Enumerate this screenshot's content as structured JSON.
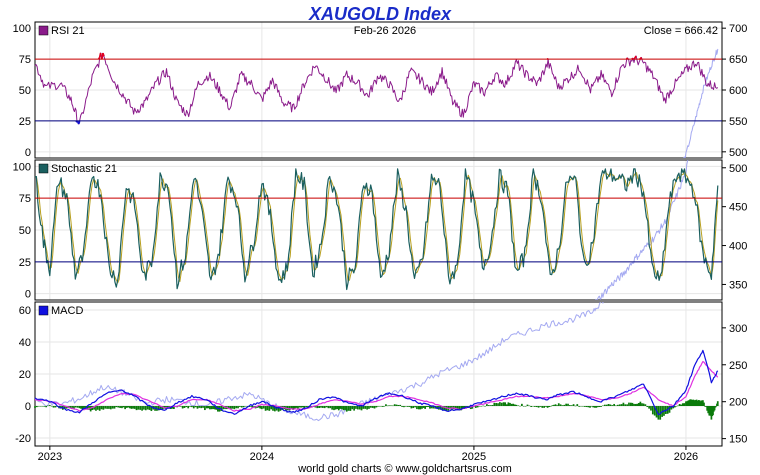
{
  "chart_data": {
    "type": "line",
    "title": "XAUGOLD Index",
    "date_label": "Feb-26  2026",
    "close_label": "Close = 666.42",
    "footer": "world gold charts © www.goldchartsrus.com",
    "x_labels": [
      "2023",
      "2024",
      "2025",
      "2026"
    ],
    "x_range": [
      2022.93,
      2026.17
    ],
    "colors": {
      "rsi": "#8a1a8a",
      "rsi_overbought": "#e00020",
      "rsi_oversold": "#1010d0",
      "stoch_k": "#1a5f5f",
      "stoch_d": "#b8a020",
      "macd": "#1010e0",
      "signal": "#e030e0",
      "histogram": "#0a7a0a",
      "price": "#9aa0f0",
      "upper_line": "#cc0000",
      "lower_line": "#000080",
      "grid": "#e6e6e6"
    },
    "price_series": {
      "name": "XAUGOLD Index",
      "x": [
        2022.93,
        2023.05,
        2023.15,
        2023.25,
        2023.35,
        2023.45,
        2023.55,
        2023.65,
        2023.75,
        2023.85,
        2023.95,
        2024.05,
        2024.15,
        2024.25,
        2024.35,
        2024.45,
        2024.55,
        2024.65,
        2024.75,
        2024.85,
        2024.95,
        2025.05,
        2025.15,
        2025.25,
        2025.35,
        2025.45,
        2025.55,
        2025.6,
        2025.65,
        2025.7,
        2025.75,
        2025.8,
        2025.85,
        2025.9,
        2025.95,
        2026.0,
        2026.05,
        2026.08,
        2026.12,
        2026.15
      ],
      "values": [
        200,
        196,
        205,
        220,
        212,
        198,
        203,
        200,
        195,
        205,
        210,
        195,
        185,
        178,
        182,
        195,
        205,
        215,
        225,
        240,
        250,
        265,
        285,
        295,
        305,
        310,
        320,
        335,
        350,
        362,
        380,
        395,
        410,
        430,
        460,
        495,
        560,
        600,
        640,
        666.42
      ]
    },
    "rsi": {
      "label": "RSI 21",
      "yticks": [
        100,
        75,
        50,
        25,
        0
      ],
      "ylim": [
        -5,
        105
      ],
      "overbought": 75,
      "oversold": 25,
      "x": [
        2022.93,
        2022.98,
        2023.05,
        2023.1,
        2023.14,
        2023.2,
        2023.25,
        2023.3,
        2023.35,
        2023.4,
        2023.45,
        2023.5,
        2023.55,
        2023.6,
        2023.65,
        2023.7,
        2023.75,
        2023.8,
        2023.85,
        2023.9,
        2023.95,
        2024.0,
        2024.05,
        2024.1,
        2024.15,
        2024.2,
        2024.25,
        2024.3,
        2024.35,
        2024.4,
        2024.45,
        2024.5,
        2024.55,
        2024.6,
        2024.65,
        2024.7,
        2024.75,
        2024.8,
        2024.85,
        2024.9,
        2024.95,
        2025.0,
        2025.05,
        2025.1,
        2025.15,
        2025.2,
        2025.25,
        2025.3,
        2025.35,
        2025.4,
        2025.45,
        2025.5,
        2025.55,
        2025.6,
        2025.65,
        2025.7,
        2025.75,
        2025.8,
        2025.85,
        2025.9,
        2025.95,
        2026.0,
        2026.05,
        2026.1,
        2026.15
      ],
      "values": [
        72,
        52,
        55,
        42,
        22,
        60,
        80,
        58,
        45,
        32,
        40,
        55,
        65,
        40,
        30,
        55,
        62,
        50,
        35,
        62,
        55,
        42,
        58,
        40,
        35,
        55,
        70,
        60,
        48,
        62,
        56,
        45,
        62,
        55,
        40,
        65,
        58,
        48,
        65,
        40,
        30,
        55,
        48,
        62,
        55,
        72,
        62,
        55,
        72,
        52,
        60,
        68,
        50,
        62,
        48,
        70,
        75,
        72,
        60,
        42,
        55,
        66,
        73,
        55,
        52
      ]
    },
    "stochastic": {
      "label": "Stochastic 21",
      "yticks": [
        100,
        75,
        50,
        25,
        0
      ],
      "ylim": [
        -5,
        105
      ],
      "overbought": 75,
      "oversold": 25,
      "x": [
        2022.93,
        2022.97,
        2023.0,
        2023.04,
        2023.08,
        2023.12,
        2023.16,
        2023.2,
        2023.24,
        2023.28,
        2023.32,
        2023.36,
        2023.4,
        2023.44,
        2023.48,
        2023.52,
        2023.56,
        2023.6,
        2023.64,
        2023.68,
        2023.72,
        2023.76,
        2023.8,
        2023.84,
        2023.88,
        2023.92,
        2023.96,
        2024.0,
        2024.04,
        2024.08,
        2024.12,
        2024.16,
        2024.2,
        2024.24,
        2024.28,
        2024.32,
        2024.36,
        2024.4,
        2024.44,
        2024.48,
        2024.52,
        2024.56,
        2024.6,
        2024.64,
        2024.68,
        2024.72,
        2024.76,
        2024.8,
        2024.84,
        2024.88,
        2024.92,
        2024.96,
        2025.0,
        2025.04,
        2025.08,
        2025.12,
        2025.16,
        2025.2,
        2025.24,
        2025.28,
        2025.32,
        2025.36,
        2025.4,
        2025.44,
        2025.48,
        2025.52,
        2025.56,
        2025.6,
        2025.64,
        2025.68,
        2025.72,
        2025.76,
        2025.8,
        2025.84,
        2025.88,
        2025.92,
        2025.96,
        2026.0,
        2026.04,
        2026.08,
        2026.12,
        2026.15
      ],
      "values": [
        95,
        40,
        20,
        90,
        75,
        15,
        30,
        95,
        80,
        20,
        10,
        85,
        70,
        12,
        25,
        90,
        85,
        10,
        30,
        95,
        60,
        8,
        35,
        92,
        75,
        15,
        40,
        90,
        60,
        10,
        20,
        95,
        85,
        15,
        40,
        95,
        70,
        10,
        20,
        88,
        80,
        10,
        35,
        92,
        65,
        8,
        30,
        90,
        85,
        12,
        20,
        95,
        70,
        20,
        40,
        92,
        80,
        15,
        30,
        95,
        75,
        10,
        35,
        90,
        88,
        20,
        40,
        92,
        95,
        90,
        85,
        96,
        80,
        20,
        8,
        70,
        95,
        92,
        80,
        30,
        15,
        85
      ]
    },
    "macd": {
      "label": "MACD",
      "yticks": [
        60,
        40,
        20,
        0,
        -20
      ],
      "ylim": [
        -25,
        65
      ],
      "x": [
        2022.93,
        2023.0,
        2023.07,
        2023.14,
        2023.2,
        2023.27,
        2023.34,
        2023.4,
        2023.47,
        2023.54,
        2023.6,
        2023.67,
        2023.74,
        2023.8,
        2023.87,
        2023.94,
        2024.0,
        2024.07,
        2024.14,
        2024.2,
        2024.27,
        2024.34,
        2024.4,
        2024.47,
        2024.54,
        2024.6,
        2024.67,
        2024.74,
        2024.8,
        2024.87,
        2024.94,
        2025.0,
        2025.07,
        2025.14,
        2025.2,
        2025.27,
        2025.34,
        2025.4,
        2025.47,
        2025.54,
        2025.6,
        2025.67,
        2025.74,
        2025.8,
        2025.87,
        2025.94,
        2026.0,
        2026.04,
        2026.08,
        2026.12,
        2026.15
      ],
      "macd_values": [
        5,
        3,
        -2,
        -4,
        2,
        8,
        10,
        6,
        0,
        -3,
        2,
        6,
        4,
        -2,
        -5,
        0,
        3,
        -1,
        -4,
        -2,
        4,
        6,
        2,
        0,
        5,
        8,
        6,
        2,
        0,
        -3,
        -2,
        1,
        3,
        6,
        8,
        6,
        4,
        7,
        9,
        5,
        3,
        6,
        10,
        14,
        -5,
        0,
        10,
        25,
        35,
        15,
        22
      ],
      "signal_values": [
        4,
        3,
        0,
        -3,
        -1,
        4,
        8,
        7,
        3,
        -1,
        0,
        4,
        4,
        1,
        -3,
        -2,
        1,
        0,
        -2,
        -2,
        1,
        4,
        3,
        1,
        3,
        6,
        6,
        4,
        2,
        -1,
        -2,
        0,
        2,
        4,
        6,
        6,
        5,
        6,
        8,
        6,
        4,
        5,
        8,
        12,
        4,
        0,
        6,
        18,
        28,
        22,
        18
      ],
      "histogram_values": [
        -1,
        0,
        -2,
        -1,
        -3,
        -2,
        -1,
        -2,
        -3,
        -2,
        -1,
        -1,
        -2,
        -3,
        -2,
        0,
        -2,
        -3,
        -2,
        -1,
        -1,
        -2,
        -3,
        -2,
        -1,
        1,
        0,
        -2,
        -1,
        -3,
        -2,
        -1,
        1,
        2,
        1,
        0,
        -1,
        1,
        1,
        -1,
        0,
        1,
        2,
        2,
        -9,
        -2,
        3,
        4,
        3,
        -8,
        3
      ]
    },
    "price_axis_rsi": {
      "yticks": [
        700,
        650,
        600,
        550,
        500
      ],
      "ylim": [
        490,
        710
      ]
    },
    "price_axis_stoch": {
      "yticks": [
        500,
        450,
        400,
        350
      ],
      "ylim": [
        330,
        510
      ]
    },
    "price_axis_macd": {
      "yticks": [
        300,
        250,
        200,
        150
      ],
      "ylim": [
        140,
        335
      ]
    }
  }
}
